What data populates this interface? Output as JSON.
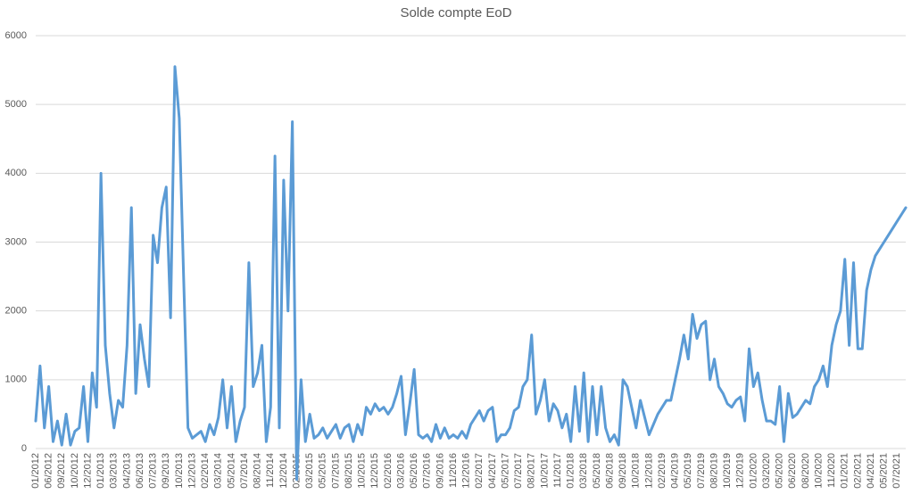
{
  "chart_data": {
    "type": "line",
    "title": "Solde compte EoD",
    "categories": [
      "01/2012",
      null,
      null,
      "06/2012",
      null,
      null,
      "09/2012",
      null,
      null,
      "10/2012",
      null,
      null,
      "12/2012",
      null,
      null,
      "01/2013",
      null,
      null,
      "03/2013",
      null,
      null,
      "04/2013",
      null,
      null,
      "06/2013",
      null,
      null,
      "07/2013",
      null,
      null,
      "09/2013",
      null,
      null,
      "10/2013",
      null,
      null,
      "12/2013",
      null,
      null,
      "02/2014",
      null,
      null,
      "03/2014",
      null,
      null,
      "05/2014",
      null,
      null,
      "07/2014",
      null,
      null,
      "08/2014",
      null,
      null,
      "11/2014",
      null,
      null,
      "12/2014",
      null,
      null,
      "02/2015",
      null,
      null,
      "03/2015",
      null,
      null,
      "05/2015",
      null,
      null,
      "07/2015",
      null,
      null,
      "08/2015",
      null,
      null,
      "10/2015",
      null,
      null,
      "12/2015",
      null,
      null,
      "02/2016",
      null,
      null,
      "03/2016",
      null,
      null,
      "05/2016",
      null,
      null,
      "07/2016",
      null,
      null,
      "09/2016",
      null,
      null,
      "11/2016",
      null,
      null,
      "12/2016",
      null,
      null,
      "02/2017",
      null,
      null,
      "04/2017",
      null,
      null,
      "05/2017",
      null,
      null,
      "07/2017",
      null,
      null,
      "08/2017",
      null,
      null,
      "10/2017",
      null,
      null,
      "11/2017",
      null,
      null,
      "01/2018",
      null,
      null,
      "03/2018",
      null,
      null,
      "05/2018",
      null,
      null,
      "06/2018",
      null,
      null,
      "09/2018",
      null,
      null,
      "10/2018",
      null,
      null,
      "12/2018",
      null,
      null,
      "02/2019",
      null,
      null,
      "04/2019",
      null,
      null,
      "05/2019",
      null,
      null,
      "07/2019",
      null,
      null,
      "08/2019",
      null,
      null,
      "10/2019",
      null,
      null,
      "12/2019",
      null,
      null,
      "01/2020",
      null,
      null,
      "03/2020",
      null,
      null,
      "05/2020",
      null,
      null,
      "06/2020",
      null,
      null,
      "08/2020",
      null,
      null,
      "10/2020",
      null,
      null,
      "11/2020",
      null,
      null,
      "01/2021",
      null,
      null,
      "02/2021",
      null,
      null,
      "04/2021",
      null,
      null,
      "05/2021",
      null,
      null,
      "07/2021",
      null,
      null
    ],
    "series": [
      {
        "color": "#5b9bd5",
        "values": [
          400,
          1200,
          300,
          900,
          100,
          400,
          50,
          500,
          50,
          250,
          300,
          900,
          100,
          1100,
          600,
          4000,
          1500,
          800,
          300,
          700,
          600,
          1500,
          3500,
          800,
          1800,
          1300,
          900,
          3100,
          2700,
          3500,
          3800,
          1900,
          5550,
          4800,
          2500,
          300,
          150,
          200,
          250,
          100,
          350,
          200,
          450,
          1000,
          300,
          900,
          100,
          400,
          600,
          2700,
          900,
          1100,
          1500,
          100,
          600,
          4250,
          300,
          3900,
          2000,
          4750,
          -450,
          1000,
          100,
          500,
          150,
          200,
          300,
          150,
          250,
          350,
          150,
          300,
          350,
          100,
          350,
          200,
          600,
          500,
          650,
          550,
          600,
          500,
          600,
          800,
          1050,
          200,
          650,
          1150,
          200,
          150,
          200,
          100,
          350,
          150,
          300,
          150,
          200,
          150,
          250,
          150,
          350,
          450,
          550,
          400,
          550,
          600,
          100,
          200,
          200,
          300,
          550,
          600,
          900,
          1000,
          1650,
          500,
          700,
          1000,
          400,
          650,
          550,
          300,
          500,
          100,
          900,
          250,
          1100,
          100,
          900,
          200,
          900,
          300,
          100,
          200,
          50,
          1000,
          900,
          600,
          300,
          700,
          450,
          200,
          350,
          500,
          600,
          700,
          700,
          1000,
          1300,
          1650,
          1300,
          1950,
          1600,
          1800,
          1850,
          1000,
          1300,
          900,
          800,
          650,
          600,
          700,
          750,
          400,
          1450,
          900,
          1100,
          700,
          400,
          400,
          350,
          900,
          100,
          800,
          450,
          500,
          600,
          700,
          650,
          900,
          1000,
          1200,
          900,
          1500,
          1800,
          2000,
          2750,
          1500,
          2700,
          1450,
          1450,
          2300,
          2600,
          2800,
          2900,
          3000,
          3100,
          3200,
          3300,
          3400,
          3500
        ]
      }
    ],
    "ylim": [
      0,
      6000
    ],
    "yticks": [
      0,
      1000,
      2000,
      3000,
      4000,
      5000,
      6000
    ],
    "grid": true
  }
}
